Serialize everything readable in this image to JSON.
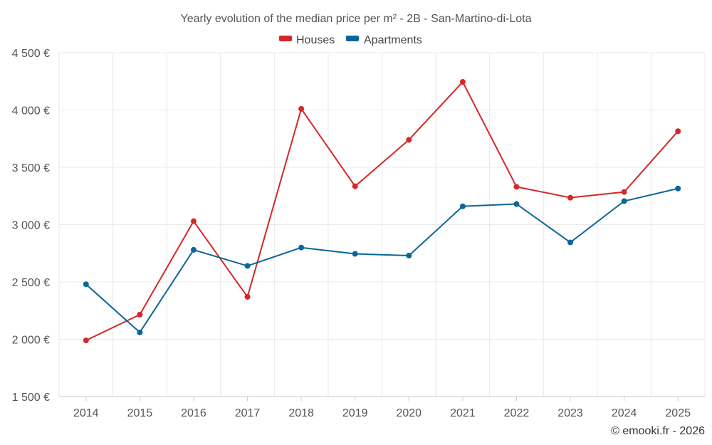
{
  "chart_data": {
    "type": "line",
    "title": "Yearly evolution of the median price per m² - 2B - San-Martino-di-Lota",
    "categories": [
      "2014",
      "2015",
      "2016",
      "2017",
      "2018",
      "2019",
      "2020",
      "2021",
      "2022",
      "2023",
      "2024",
      "2025"
    ],
    "series": [
      {
        "name": "Houses",
        "color": "#d62728",
        "values": [
          1990,
          2215,
          3030,
          2370,
          4010,
          3335,
          3740,
          4245,
          3330,
          3235,
          3285,
          3815
        ]
      },
      {
        "name": "Apartments",
        "color": "#0b6698",
        "values": [
          2480,
          2060,
          2780,
          2640,
          2800,
          2745,
          2730,
          3160,
          3180,
          2845,
          3205,
          3315
        ]
      }
    ],
    "ylim": [
      1500,
      4500
    ],
    "yticks": [
      1500,
      2000,
      2500,
      3000,
      3500,
      4000,
      4500
    ],
    "ytick_labels": [
      "1 500 €",
      "2 000 €",
      "2 500 €",
      "3 000 €",
      "3 500 €",
      "4 000 €",
      "4 500 €"
    ],
    "legend_position": "top-center",
    "grid": true
  },
  "copyright": "© emooki.fr - 2026"
}
